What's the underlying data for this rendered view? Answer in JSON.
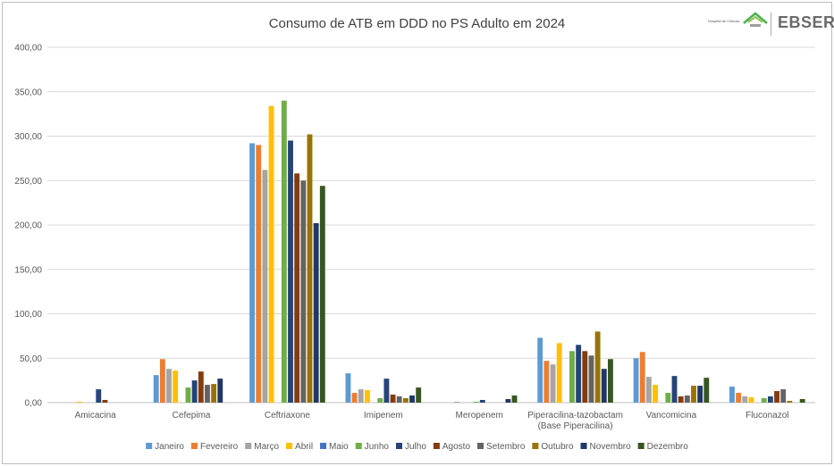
{
  "logo": {
    "hospital_text": "Hospital de Clínicas",
    "brand_text": "EBSERH"
  },
  "chart_data": {
    "type": "bar",
    "title": "Consumo de ATB em DDD no PS Adulto em 2024",
    "xlabel": "",
    "ylabel": "",
    "ylim": [
      0,
      400
    ],
    "yticks": [
      "0,00",
      "50,00",
      "100,00",
      "150,00",
      "200,00",
      "250,00",
      "300,00",
      "350,00",
      "400,00"
    ],
    "grid": true,
    "legend_position": "bottom",
    "categories": [
      [
        "Amicacina"
      ],
      [
        "Cefepima"
      ],
      [
        "Ceftriaxone"
      ],
      [
        "Imipenem"
      ],
      [
        "Meropenem"
      ],
      [
        "Piperacilina-tazobactam",
        "(Base Piperacilina)"
      ],
      [
        "Vancomicina"
      ],
      [
        "Fluconazol"
      ]
    ],
    "series": [
      {
        "name": "Janeiro",
        "color": "#5b9bd5",
        "values": [
          0,
          31,
          292,
          33,
          0,
          73,
          50,
          18
        ]
      },
      {
        "name": "Fevereiro",
        "color": "#ed7d31",
        "values": [
          0,
          49,
          290,
          11,
          0,
          47,
          57,
          11
        ]
      },
      {
        "name": "Março",
        "color": "#a5a5a5",
        "values": [
          0,
          38,
          262,
          15,
          1,
          43,
          29,
          7
        ]
      },
      {
        "name": "Abril",
        "color": "#ffc000",
        "values": [
          1,
          36,
          334,
          14,
          0,
          67,
          20,
          6
        ]
      },
      {
        "name": "Maio",
        "color": "#4472c4",
        "values": [
          0,
          0,
          0,
          0,
          0,
          0,
          0,
          0
        ]
      },
      {
        "name": "Junho",
        "color": "#70ad47",
        "values": [
          0,
          17,
          340,
          5,
          1,
          58,
          11,
          5
        ]
      },
      {
        "name": "Julho",
        "color": "#264478",
        "values": [
          15,
          25,
          295,
          27,
          3,
          65,
          30,
          7
        ]
      },
      {
        "name": "Agosto",
        "color": "#843c0c",
        "values": [
          3,
          35,
          258,
          9,
          0,
          58,
          7,
          13
        ]
      },
      {
        "name": "Setembro",
        "color": "#636363",
        "values": [
          0,
          20,
          250,
          7,
          0,
          53,
          8,
          15
        ]
      },
      {
        "name": "Outubro",
        "color": "#997300",
        "values": [
          0,
          21,
          302,
          5,
          0,
          80,
          19,
          2
        ]
      },
      {
        "name": "Novembro",
        "color": "#203864",
        "values": [
          0,
          27,
          202,
          8,
          4,
          38,
          19,
          0
        ]
      },
      {
        "name": "Dezembro",
        "color": "#375623",
        "values": [
          0,
          0,
          244,
          17,
          8,
          49,
          28,
          4
        ]
      }
    ]
  }
}
